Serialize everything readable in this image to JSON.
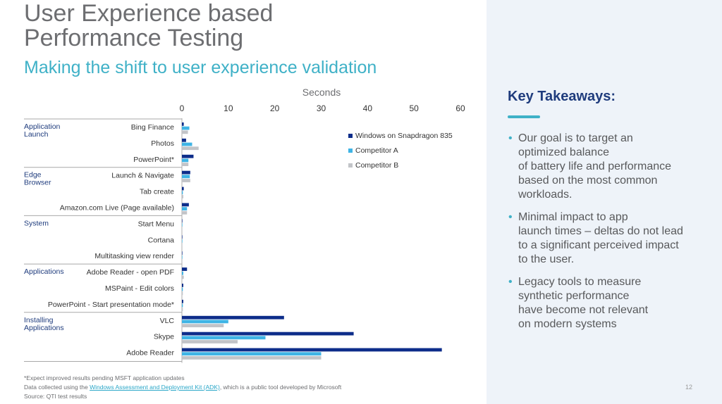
{
  "slide": {
    "title": "User Experience based\nPerformance Testing",
    "subtitle": "Making the shift to user experience validation",
    "page_number": "12"
  },
  "footnotes": {
    "line1": "*Expect improved results pending MSFT application updates",
    "line2_prefix": "Data collected using the ",
    "line2_link": "Windows Assessment and Deployment Kit (ADK)",
    "line2_suffix": ", which is a public tool developed by Microsoft",
    "line3": "Source: QTI test results"
  },
  "takeaways": {
    "title": "Key Takeaways:",
    "bullets": [
      "Our goal is to target an\noptimized balance\nof battery life and performance\nbased on the most common\nworkloads.",
      "Minimal impact to app\nlaunch times – deltas do not lead\nto a significant perceived impact\nto the user.",
      "Legacy tools to measure\nsynthetic performance\nhave become not relevant\non modern systems"
    ]
  },
  "colors": {
    "series1": "#0d2d8a",
    "series2": "#3fb4e5",
    "series3": "#c2c4c8",
    "accent": "#3fb1c7",
    "title_gray": "#6d6e71"
  },
  "chart_data": {
    "type": "bar",
    "orientation": "horizontal",
    "title": "Seconds",
    "xlim": [
      0,
      60
    ],
    "x_ticks": [
      0,
      10,
      20,
      30,
      40,
      50,
      60
    ],
    "legend_position": "top-right",
    "groups": [
      {
        "name": "Application\nLaunch",
        "categories": [
          "Bing Finance",
          "Photos",
          "PowerPoint*"
        ]
      },
      {
        "name": "Edge\nBrowser",
        "categories": [
          "Launch & Navigate",
          "Tab create",
          "Amazon.com Live (Page available)"
        ]
      },
      {
        "name": "System",
        "categories": [
          "Start Menu",
          "Cortana",
          "Multitasking view render"
        ]
      },
      {
        "name": "Applications",
        "categories": [
          "Adobe Reader - open PDF",
          "MSPaint - Edit colors",
          "PowerPoint - Start presentation mode*"
        ]
      },
      {
        "name": "Installing\nApplications",
        "categories": [
          "VLC",
          "Skype",
          "Adobe Reader"
        ]
      }
    ],
    "categories": [
      "Bing Finance",
      "Photos",
      "PowerPoint*",
      "Launch & Navigate",
      "Tab create",
      "Amazon.com Live (Page available)",
      "Start Menu",
      "Cortana",
      "Multitasking view render",
      "Adobe Reader - open PDF",
      "MSPaint - Edit colors",
      "PowerPoint - Start presentation mode*",
      "VLC",
      "Skype",
      "Adobe Reader"
    ],
    "series": [
      {
        "name": "Windows on Snapdragon 835",
        "values": [
          0.4,
          0.9,
          2.5,
          1.8,
          0.4,
          1.5,
          0.1,
          0.1,
          0.1,
          1.1,
          0.3,
          0.3,
          22,
          37,
          56
        ]
      },
      {
        "name": "Competitor A",
        "values": [
          1.6,
          2.2,
          1.4,
          1.7,
          0.2,
          1.1,
          0.1,
          0.1,
          0.1,
          0.3,
          0.2,
          0.2,
          10,
          18,
          30
        ]
      },
      {
        "name": "Competitor B",
        "values": [
          1.3,
          3.6,
          1.4,
          1.8,
          0.3,
          1.1,
          0.1,
          0.1,
          0.1,
          0.4,
          0.2,
          0.2,
          9,
          12,
          30
        ]
      }
    ]
  }
}
